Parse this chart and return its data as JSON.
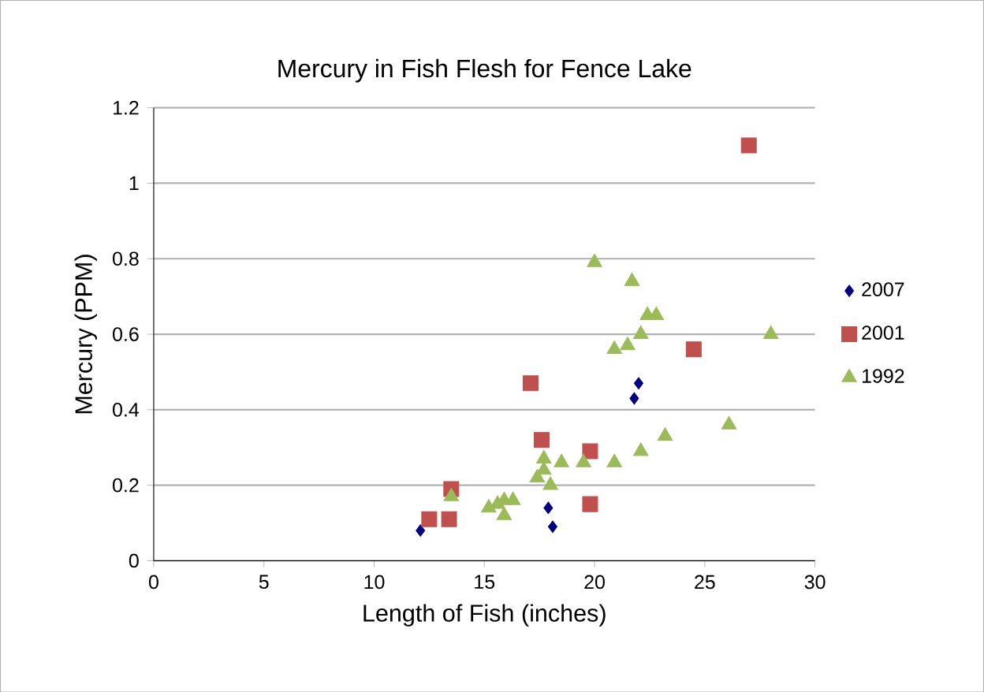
{
  "chart_data": {
    "type": "scatter",
    "title": "Mercury in Fish Flesh for Fence Lake",
    "xlabel": "Length of Fish (inches)",
    "ylabel": "Mercury (PPM)",
    "xlim": [
      0,
      30
    ],
    "xticks": [
      0,
      5,
      10,
      15,
      20,
      25,
      30
    ],
    "ylim": [
      0,
      1.2
    ],
    "yticks": [
      0,
      0.2,
      0.4,
      0.6,
      0.8,
      1,
      1.2
    ],
    "grid": "y",
    "legend": "right",
    "series": [
      {
        "name": "2007",
        "color": "#000080",
        "marker": "diamond",
        "x": [
          12.1,
          17.9,
          18.1,
          21.8,
          22.0
        ],
        "values": [
          0.08,
          0.14,
          0.09,
          0.43,
          0.47
        ]
      },
      {
        "name": "2001",
        "color": "#c0504d",
        "marker": "square",
        "x": [
          12.5,
          13.4,
          13.5,
          17.1,
          17.6,
          19.8,
          19.8,
          24.5,
          27.0
        ],
        "values": [
          0.11,
          0.11,
          0.19,
          0.47,
          0.32,
          0.29,
          0.15,
          0.56,
          1.1
        ]
      },
      {
        "name": "1992",
        "color": "#9bbb59",
        "marker": "triangle",
        "x": [
          13.5,
          15.2,
          15.6,
          15.9,
          16.3,
          15.9,
          17.4,
          17.7,
          17.7,
          18.0,
          18.5,
          19.5,
          20.9,
          20.0,
          21.7,
          22.4,
          22.8,
          21.5,
          22.1,
          20.9,
          23.2,
          22.1,
          26.1,
          28.0
        ],
        "values": [
          0.17,
          0.14,
          0.15,
          0.16,
          0.16,
          0.12,
          0.22,
          0.27,
          0.24,
          0.2,
          0.26,
          0.26,
          0.26,
          0.79,
          0.74,
          0.65,
          0.65,
          0.57,
          0.6,
          0.56,
          0.33,
          0.29,
          0.36,
          0.6
        ]
      }
    ]
  }
}
